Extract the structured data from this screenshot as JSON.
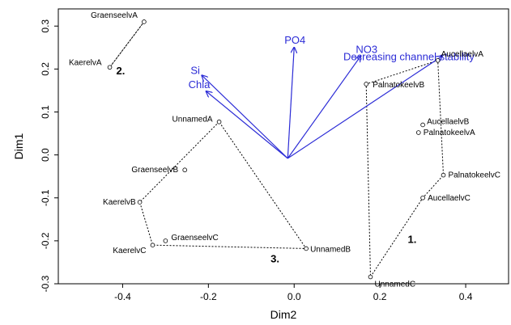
{
  "chart_data": {
    "type": "scatter",
    "xlabel": "Dim2",
    "ylabel": "Dim1",
    "xlim": [
      -0.55,
      0.5
    ],
    "ylim": [
      -0.3,
      0.34
    ],
    "xticks": [
      -0.4,
      -0.2,
      0.0,
      0.2,
      0.4
    ],
    "yticks": [
      -0.3,
      -0.2,
      -0.1,
      0.0,
      0.1,
      0.2,
      0.3
    ],
    "xtick_labels": [
      "-0.4",
      "-0.2",
      "0.0",
      "0.2",
      "0.4"
    ],
    "ytick_labels": [
      "-0.3",
      "-0.2",
      "-0.1",
      "0.0",
      "0.1",
      "0.2",
      "0.3"
    ],
    "points": [
      {
        "label": "GraenseelvA",
        "x": -0.35,
        "y": 0.31
      },
      {
        "label": "KaerelvA",
        "x": -0.43,
        "y": 0.204
      },
      {
        "label": "UnnamedA",
        "x": -0.175,
        "y": 0.077
      },
      {
        "label": "GraenseelvB",
        "x": -0.255,
        "y": -0.035
      },
      {
        "label": "KaerelvB",
        "x": -0.36,
        "y": -0.11
      },
      {
        "label": "GraenseelvC",
        "x": -0.3,
        "y": -0.2
      },
      {
        "label": "KaerelvC",
        "x": -0.33,
        "y": -0.21
      },
      {
        "label": "UnnamedB",
        "x": 0.028,
        "y": -0.218
      },
      {
        "label": "AucellaelvA",
        "x": 0.335,
        "y": 0.22
      },
      {
        "label": "PalnatokeelvB",
        "x": 0.168,
        "y": 0.165
      },
      {
        "label": "AucellaelvB",
        "x": 0.3,
        "y": 0.07
      },
      {
        "label": "PalnatokeelvA",
        "x": 0.29,
        "y": 0.052
      },
      {
        "label": "PalnatokeelvC",
        "x": 0.348,
        "y": -0.047
      },
      {
        "label": "AucellaelvC",
        "x": 0.3,
        "y": -0.1
      },
      {
        "label": "UnnamedC",
        "x": 0.178,
        "y": -0.284
      }
    ],
    "groups": [
      {
        "label": "2.",
        "members": [
          "GraenseelvA",
          "KaerelvA"
        ],
        "label_x": -0.415,
        "label_y": 0.188
      },
      {
        "label": "3.",
        "members": [
          "UnnamedA",
          "KaerelvB",
          "KaerelvC",
          "UnnamedB"
        ],
        "label_x": -0.055,
        "label_y": -0.25
      },
      {
        "label": "1.",
        "members": [
          "AucellaelvA",
          "PalnatokeelvB",
          "UnnamedC",
          "AucellaelvC",
          "PalnatokeelvC"
        ],
        "label_x": 0.265,
        "label_y": -0.205
      }
    ],
    "vectors_origin": [
      -0.015,
      -0.008
    ],
    "vectors": [
      {
        "label": "PO4",
        "x": 0.0,
        "y": 0.25
      },
      {
        "label": "NO3",
        "x": 0.155,
        "y": 0.23
      },
      {
        "label": "Decreasing channel stability",
        "x": 0.345,
        "y": 0.23
      },
      {
        "label": "Si",
        "x": -0.215,
        "y": 0.185
      },
      {
        "label": "Chla",
        "x": -0.205,
        "y": 0.148
      }
    ],
    "colors": {
      "vectors": "#2b2bd6",
      "points": "#000000"
    }
  }
}
